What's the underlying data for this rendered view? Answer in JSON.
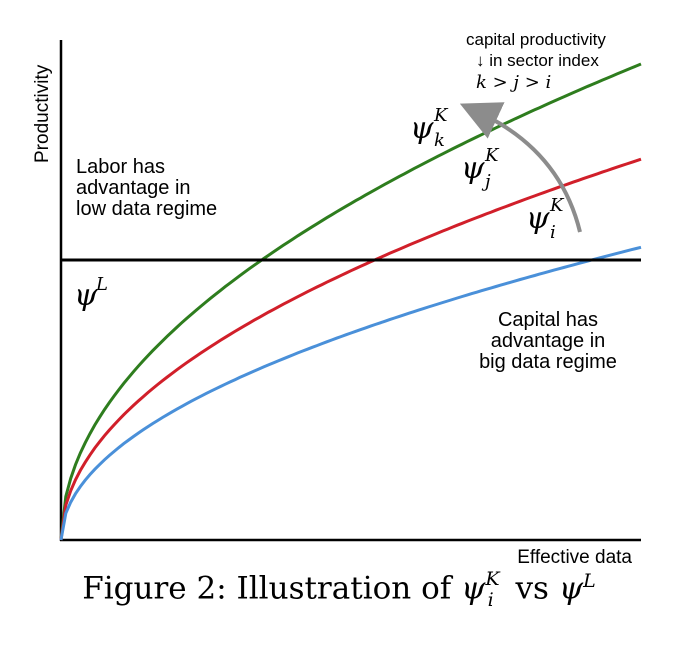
{
  "axes": {
    "ylabel": "Productivity",
    "xlabel": "Effective data"
  },
  "labels": {
    "labor_advantage": [
      "Labor has",
      "advantage in",
      "low data regime"
    ],
    "capital_advantage": [
      "Capital has",
      "advantage in",
      "big data regime"
    ],
    "annotation": [
      "capital  productivity",
      "↓ in sector index",
      "k > j > i"
    ],
    "psi_L": {
      "base": "ψ",
      "sup": "L"
    },
    "psi_k": {
      "base": "ψ",
      "sup": "K",
      "sub": "k"
    },
    "psi_j": {
      "base": "ψ",
      "sup": "K",
      "sub": "j"
    },
    "psi_i": {
      "base": "ψ",
      "sup": "K",
      "sub": "i"
    }
  },
  "curves": {
    "k": {
      "color": "#2e7d1e",
      "k": 1.0
    },
    "j": {
      "color": "#d11f2a",
      "k": 0.8
    },
    "i": {
      "color": "#4a90d9",
      "k": 0.615
    },
    "labor_line": {
      "color": "#000000"
    },
    "arrow": {
      "color": "#8c8c8c"
    }
  },
  "caption": {
    "prefix": "Figure 2: Illustration of ",
    "psi": "ψ",
    "sup_i": "K",
    "sub_i": "i",
    "vs": " vs ",
    "sup_L": "L"
  }
}
